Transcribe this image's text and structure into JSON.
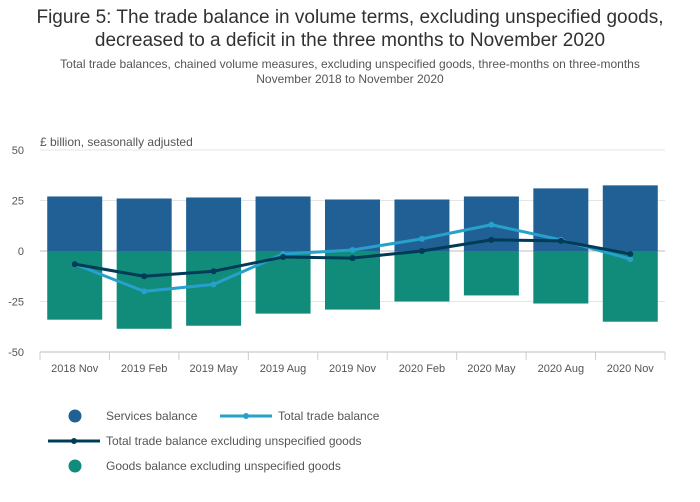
{
  "header": {
    "title_line1": "Figure 5: The trade balance in volume terms, excluding unspecified goods,",
    "title_line2": "decreased to a deficit in the three months to November 2020",
    "subtitle_line1": "Total trade balances, chained volume measures, excluding unspecified goods, three-months on three-months",
    "subtitle_line2": "November 2018 to November 2020"
  },
  "chart_data": {
    "type": "bar",
    "unit_label": "£ billion, seasonally adjusted",
    "categories": [
      "2018 Nov",
      "2019 Feb",
      "2019 May",
      "2019 Aug",
      "2019 Nov",
      "2020 Feb",
      "2020 May",
      "2020 Aug",
      "2020 Nov"
    ],
    "ylim": [
      -50,
      50
    ],
    "yticks": [
      50,
      25,
      0,
      -25,
      -50
    ],
    "grid": true,
    "legend_position": "bottom-left",
    "series": [
      {
        "name": "Services balance",
        "kind": "bar",
        "color": "#206095",
        "values": [
          27,
          26,
          26.5,
          27,
          25.5,
          25.5,
          27,
          31,
          32.5
        ]
      },
      {
        "name": "Goods balance excluding unspecified goods",
        "kind": "bar",
        "color": "#118c7b",
        "values": [
          -34,
          -38.5,
          -37,
          -31,
          -29,
          -25,
          -22,
          -26,
          -35
        ]
      },
      {
        "name": "Total trade balance",
        "kind": "line",
        "color": "#27a0cc",
        "values": [
          -6.5,
          -20,
          -16.5,
          -1.5,
          0.5,
          6,
          13,
          5.5,
          -4
        ]
      },
      {
        "name": "Total trade balance excluding unspecified goods",
        "kind": "line",
        "color": "#003c57",
        "values": [
          -6.5,
          -12.5,
          -10,
          -3,
          -3.5,
          0,
          5.5,
          5,
          -1.5
        ]
      }
    ],
    "legend": [
      {
        "label": "Services balance",
        "symbol": "dot",
        "color": "#206095"
      },
      {
        "label": "Total trade balance",
        "symbol": "line",
        "color": "#27a0cc"
      },
      {
        "label": "Total trade balance excluding unspecified goods",
        "symbol": "line",
        "color": "#003c57"
      },
      {
        "label": "Goods balance excluding unspecified goods",
        "symbol": "dot",
        "color": "#118c7b"
      }
    ]
  }
}
